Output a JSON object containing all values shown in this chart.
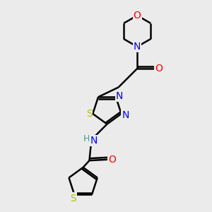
{
  "bg_color": "#ebebeb",
  "bond_color": "#000000",
  "line_width": 1.8,
  "atom_colors": {
    "N": "#0000ff",
    "O": "#ff0000",
    "S_thiad": "#bbbb00",
    "S_thioph": "#bbbb00",
    "C": "#000000",
    "H": "#4a9a8a"
  },
  "font_size": 9,
  "fig_size": [
    3.0,
    3.0
  ],
  "dpi": 100
}
